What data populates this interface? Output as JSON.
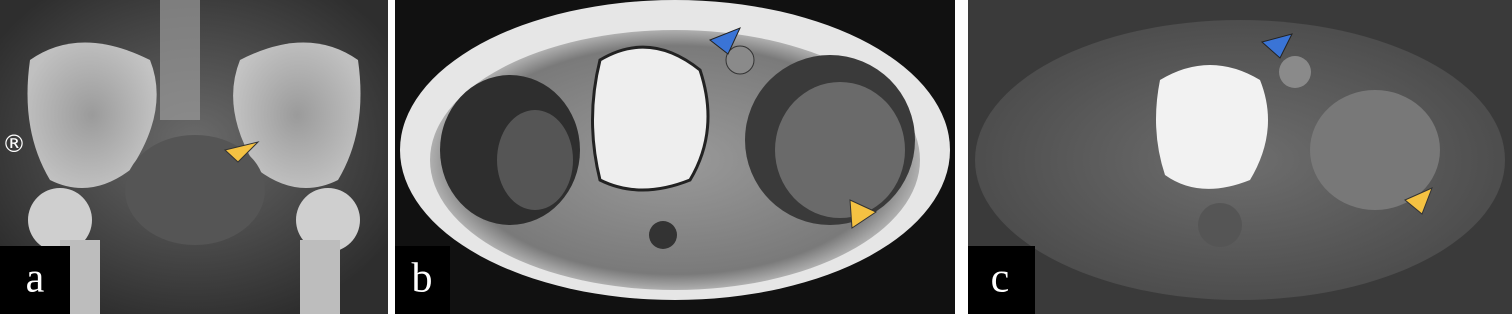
{
  "panels": [
    {
      "label": "a",
      "marker": "®"
    },
    {
      "label": "b"
    },
    {
      "label": "c"
    }
  ]
}
